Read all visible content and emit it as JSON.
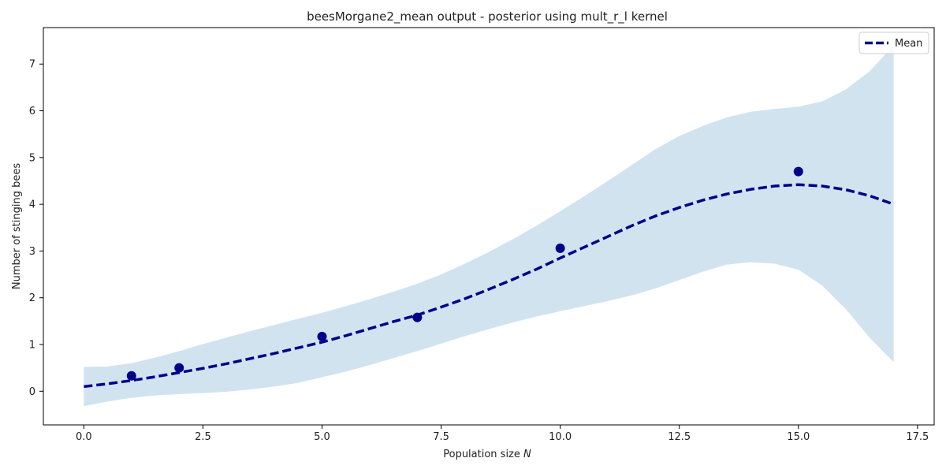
{
  "chart_data": {
    "type": "line",
    "title": "beesMorgane2_mean output - posterior using mult_r_l kernel",
    "xlabel": "Population size",
    "xlabel_symbol": "N",
    "ylabel": "Number of stinging bees",
    "xlim": [
      -0.85,
      17.85
    ],
    "ylim": [
      -0.72,
      7.78
    ],
    "xticks": [
      0.0,
      2.5,
      5.0,
      7.5,
      10.0,
      12.5,
      15.0,
      17.5
    ],
    "xtick_labels": [
      "0.0",
      "2.5",
      "5.0",
      "7.5",
      "10.0",
      "12.5",
      "15.0",
      "17.5"
    ],
    "yticks": [
      0,
      1,
      2,
      3,
      4,
      5,
      6,
      7
    ],
    "ytick_labels": [
      "0",
      "1",
      "2",
      "3",
      "4",
      "5",
      "6",
      "7"
    ],
    "grid": false,
    "legend": {
      "position": "top-right",
      "entries": [
        "Mean"
      ]
    },
    "colors": {
      "mean_line": "#00008b",
      "points": "#00008b",
      "band": "#d2e3f0"
    },
    "series": [
      {
        "name": "Mean",
        "style": "dashed",
        "x": [
          0,
          0.5,
          1,
          1.5,
          2,
          2.5,
          3,
          3.5,
          4,
          4.5,
          5,
          5.5,
          6,
          6.5,
          7,
          7.5,
          8,
          8.5,
          9,
          9.5,
          10,
          10.5,
          11,
          11.5,
          12,
          12.5,
          13,
          13.5,
          14,
          14.5,
          15,
          15.5,
          16,
          16.5,
          17
        ],
        "y": [
          0.1,
          0.16,
          0.23,
          0.31,
          0.4,
          0.49,
          0.59,
          0.7,
          0.81,
          0.93,
          1.05,
          1.19,
          1.34,
          1.49,
          1.63,
          1.8,
          1.98,
          2.18,
          2.39,
          2.61,
          2.85,
          3.08,
          3.31,
          3.54,
          3.75,
          3.93,
          4.09,
          4.22,
          4.32,
          4.39,
          4.42,
          4.39,
          4.31,
          4.18,
          4.0
        ]
      }
    ],
    "observations": {
      "x": [
        1,
        2,
        5,
        7,
        10,
        15
      ],
      "y": [
        0.33,
        0.5,
        1.17,
        1.58,
        3.06,
        4.7
      ]
    },
    "confidence_band": {
      "x": [
        0,
        0.5,
        1,
        1.5,
        2,
        2.5,
        3,
        3.5,
        4,
        4.5,
        5,
        5.5,
        6,
        6.5,
        7,
        7.5,
        8,
        8.5,
        9,
        9.5,
        10,
        10.5,
        11,
        11.5,
        12,
        12.5,
        13,
        13.5,
        14,
        14.5,
        15,
        15.5,
        16,
        16.5,
        17
      ],
      "upper": [
        0.52,
        0.53,
        0.6,
        0.72,
        0.86,
        1.01,
        1.15,
        1.29,
        1.42,
        1.55,
        1.68,
        1.82,
        1.97,
        2.13,
        2.3,
        2.5,
        2.73,
        2.98,
        3.25,
        3.54,
        3.85,
        4.17,
        4.5,
        4.84,
        5.18,
        5.46,
        5.68,
        5.86,
        5.98,
        6.04,
        6.09,
        6.2,
        6.46,
        6.85,
        7.4
      ],
      "lower": [
        -0.32,
        -0.22,
        -0.14,
        -0.09,
        -0.06,
        -0.04,
        -0.01,
        0.04,
        0.1,
        0.18,
        0.3,
        0.42,
        0.56,
        0.71,
        0.86,
        1.02,
        1.18,
        1.33,
        1.47,
        1.6,
        1.71,
        1.82,
        1.93,
        2.05,
        2.2,
        2.38,
        2.56,
        2.71,
        2.76,
        2.73,
        2.6,
        2.26,
        1.75,
        1.14,
        0.62
      ]
    }
  }
}
